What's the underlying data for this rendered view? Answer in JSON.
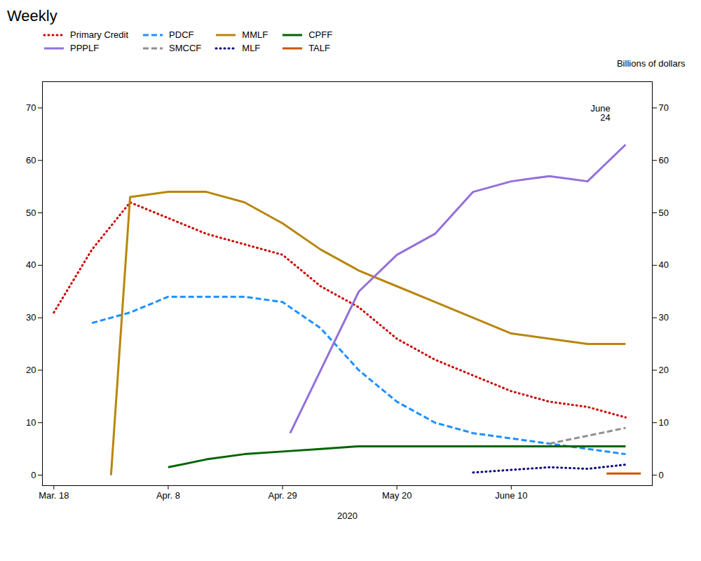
{
  "chart_data": {
    "type": "line",
    "title": "Weekly",
    "xlabel": "2020",
    "ylabel": "Billions of dollars",
    "xlim": [
      -0.3,
      15.7
    ],
    "xticks": [
      {
        "value": 0,
        "label": "Mar. 18"
      },
      {
        "value": 3,
        "label": "Apr. 8"
      },
      {
        "value": 6,
        "label": "Apr. 29"
      },
      {
        "value": 9,
        "label": "May 20"
      },
      {
        "value": 12,
        "label": "June 10"
      }
    ],
    "ylim": [
      -2,
      75
    ],
    "yticks": [
      0,
      10,
      20,
      30,
      40,
      50,
      60,
      70
    ],
    "grid": false,
    "legend": "upper left",
    "annotations": [
      {
        "text": "June\n24",
        "x": 14.6,
        "y": 70.5
      }
    ],
    "series": [
      {
        "name": "Primary Credit",
        "color": "#cc0000",
        "line_style": "dotted",
        "x": [
          0,
          1,
          2,
          3,
          4,
          5,
          6,
          7,
          8,
          9,
          10,
          11,
          12,
          13,
          14,
          15
        ],
        "values": [
          31,
          43,
          52,
          49,
          46,
          44,
          42,
          36,
          32,
          26,
          22,
          19,
          16,
          14,
          13,
          11
        ]
      },
      {
        "name": "PDCF",
        "color": "#1e90ff",
        "line_style": "dashed",
        "x": [
          1,
          2,
          3,
          4,
          5,
          6,
          7,
          8,
          9,
          10,
          11,
          12,
          13,
          14,
          15
        ],
        "values": [
          29,
          31,
          34,
          34,
          34,
          33,
          28,
          20,
          14,
          10,
          8,
          7,
          6,
          5,
          4
        ]
      },
      {
        "name": "MMLF",
        "color": "#b8860b",
        "line_style": "solid",
        "x": [
          1.5,
          2,
          3,
          4,
          5,
          6,
          7,
          8,
          9,
          10,
          11,
          12,
          13,
          14,
          15
        ],
        "values": [
          0,
          53,
          54,
          54,
          52,
          48,
          43,
          39,
          36,
          33,
          30,
          27,
          26,
          25,
          25
        ]
      },
      {
        "name": "CPFF",
        "color": "#006400",
        "line_style": "solid",
        "x": [
          3,
          4,
          5,
          6,
          7,
          8,
          9,
          10,
          11,
          12,
          13,
          14,
          15
        ],
        "values": [
          1.5,
          3,
          4,
          4.5,
          5,
          5.5,
          5.5,
          5.5,
          5.5,
          5.5,
          5.5,
          5.5,
          5.5
        ]
      },
      {
        "name": "PPPLF",
        "color": "#9370db",
        "line_style": "solid",
        "x": [
          6.2,
          7,
          8,
          9,
          10,
          11,
          12,
          13,
          14,
          15
        ],
        "values": [
          8,
          20,
          35,
          42,
          46,
          54,
          56,
          57,
          56,
          63
        ]
      },
      {
        "name": "SMCCF",
        "color": "#909090",
        "line_style": "dashed",
        "x": [
          13,
          14,
          15
        ],
        "values": [
          6,
          7.5,
          9
        ]
      },
      {
        "name": "MLF",
        "color": "#000080",
        "line_style": "dotted",
        "x": [
          11,
          12,
          13,
          14,
          15
        ],
        "values": [
          0.5,
          1.0,
          1.5,
          1.2,
          2.0
        ]
      },
      {
        "name": "TALF",
        "color": "#cc5500",
        "line_style": "solid",
        "x": [
          14.5,
          15.4
        ],
        "values": [
          0.3,
          0.3
        ]
      }
    ]
  }
}
